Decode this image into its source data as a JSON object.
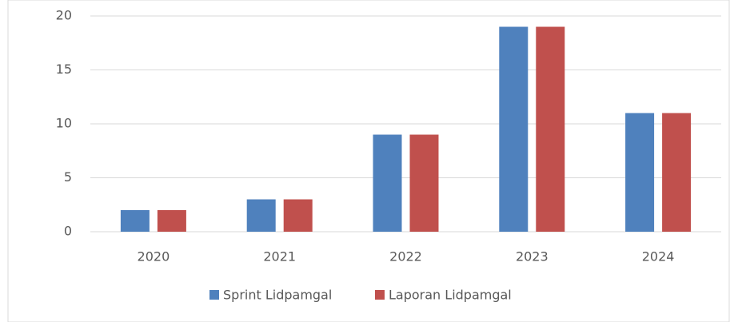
{
  "chart_data": {
    "type": "bar",
    "categories": [
      "2020",
      "2021",
      "2022",
      "2023",
      "2024"
    ],
    "series": [
      {
        "name": "Sprint Lidpamgal",
        "color": "#4f81bd",
        "values": [
          2,
          3,
          9,
          19,
          11
        ]
      },
      {
        "name": "Laporan Lidpamgal",
        "color": "#c0504d",
        "values": [
          2,
          3,
          9,
          19,
          11
        ]
      }
    ],
    "ylim": [
      0,
      20
    ],
    "yticks": [
      0,
      5,
      10,
      15,
      20
    ],
    "grid": true,
    "legend": "bottom"
  }
}
